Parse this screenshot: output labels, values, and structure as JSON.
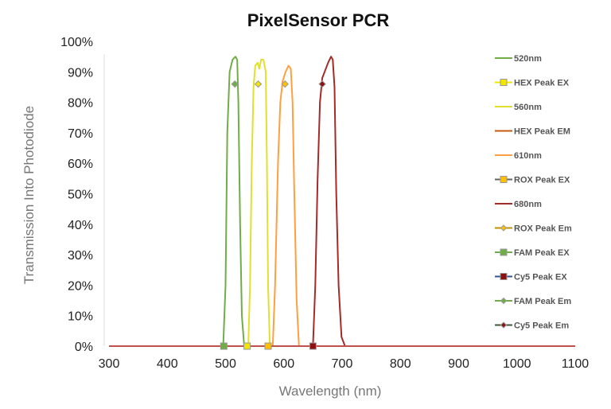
{
  "chart_data": {
    "type": "line",
    "title": "PixelSensor PCR",
    "xlabel": "Wavelength (nm)",
    "ylabel": "Transmission Into Photodiode",
    "xlim": [
      300,
      1100
    ],
    "ylim": [
      0,
      100
    ],
    "xticks": [
      "300",
      "400",
      "500",
      "600",
      "700",
      "800",
      "900",
      "1000",
      "1100"
    ],
    "yticks": [
      "0%",
      "10%",
      "20%",
      "30%",
      "40%",
      "50%",
      "60%",
      "70%",
      "80%",
      "90%",
      "100%"
    ],
    "grid": false,
    "legend_position": "right",
    "series": [
      {
        "name": "520nm",
        "color": "#70ad47",
        "kind": "line",
        "points": [
          [
            300,
            0
          ],
          [
            496,
            0
          ],
          [
            500,
            20
          ],
          [
            503,
            70
          ],
          [
            507,
            90
          ],
          [
            512,
            94
          ],
          [
            517,
            95
          ],
          [
            520,
            94
          ],
          [
            522,
            80
          ],
          [
            525,
            40
          ],
          [
            528,
            10
          ],
          [
            532,
            0
          ],
          [
            1100,
            0
          ]
        ]
      },
      {
        "name": "HEX Peak EX",
        "color": "#f2e600",
        "kind": "square",
        "points": [
          [
            537,
            0
          ]
        ]
      },
      {
        "name": "560nm",
        "color": "#e0e030",
        "kind": "line",
        "points": [
          [
            300,
            0
          ],
          [
            539,
            0
          ],
          [
            542,
            20
          ],
          [
            545,
            60
          ],
          [
            548,
            85
          ],
          [
            551,
            92
          ],
          [
            555,
            93
          ],
          [
            558,
            91
          ],
          [
            561,
            94
          ],
          [
            565,
            94
          ],
          [
            569,
            90
          ],
          [
            571,
            60
          ],
          [
            573,
            20
          ],
          [
            576,
            0
          ],
          [
            1100,
            0
          ]
        ]
      },
      {
        "name": "HEX Peak EM",
        "color": "#c55a11",
        "kind": "line",
        "points": []
      },
      {
        "name": "610nm",
        "color": "#ffa040",
        "kind": "line",
        "points": [
          [
            300,
            0
          ],
          [
            581,
            0
          ],
          [
            585,
            20
          ],
          [
            590,
            60
          ],
          [
            594,
            80
          ],
          [
            598,
            87
          ],
          [
            603,
            90
          ],
          [
            608,
            92
          ],
          [
            612,
            91
          ],
          [
            615,
            80
          ],
          [
            618,
            50
          ],
          [
            622,
            15
          ],
          [
            626,
            0
          ],
          [
            1100,
            0
          ]
        ]
      },
      {
        "name": "ROX Peak EX",
        "color": "#ffc000",
        "kind": "square",
        "points": [
          [
            573,
            0
          ]
        ]
      },
      {
        "name": "680nm",
        "color": "#a52a2a",
        "kind": "line",
        "points": [
          [
            300,
            0
          ],
          [
            650,
            0
          ],
          [
            654,
            20
          ],
          [
            658,
            55
          ],
          [
            662,
            80
          ],
          [
            666,
            88
          ],
          [
            670,
            90
          ],
          [
            676,
            93
          ],
          [
            681,
            95
          ],
          [
            684,
            94
          ],
          [
            687,
            85
          ],
          [
            690,
            50
          ],
          [
            694,
            20
          ],
          [
            699,
            3
          ],
          [
            705,
            0
          ],
          [
            1100,
            0
          ]
        ]
      },
      {
        "name": "ROX Peak Em",
        "color": "#ffc000",
        "kind": "diamond",
        "points": [
          [
            602,
            86
          ]
        ]
      },
      {
        "name": "FAM Peak EX",
        "color": "#70ad47",
        "kind": "square",
        "points": [
          [
            497,
            0
          ]
        ]
      },
      {
        "name": "Cy5 Peak EX",
        "color": "#8b1010",
        "kind": "square",
        "points": [
          [
            650,
            0
          ]
        ]
      },
      {
        "name": "FAM Peak Em",
        "color": "#70ad47",
        "kind": "diamond",
        "points": [
          [
            516,
            86
          ]
        ]
      },
      {
        "name": "Cy5 Peak Em",
        "color": "#8b1010",
        "kind": "diamond",
        "points": [
          [
            666,
            86
          ]
        ]
      },
      {
        "name": "HEX Peak Em",
        "color": "#f2e600",
        "kind": "diamond",
        "points": [
          [
            556,
            86
          ]
        ],
        "legend": false
      }
    ],
    "legend_line_colors": [
      "#70ad47",
      "#f2e600",
      "#e0e030",
      "#c55a11",
      "#ffa040",
      "#666666",
      "#a52a2a",
      "#bf9000",
      "#70ad47",
      "#2f5597",
      "#70ad47",
      "#3a5a3a"
    ]
  }
}
